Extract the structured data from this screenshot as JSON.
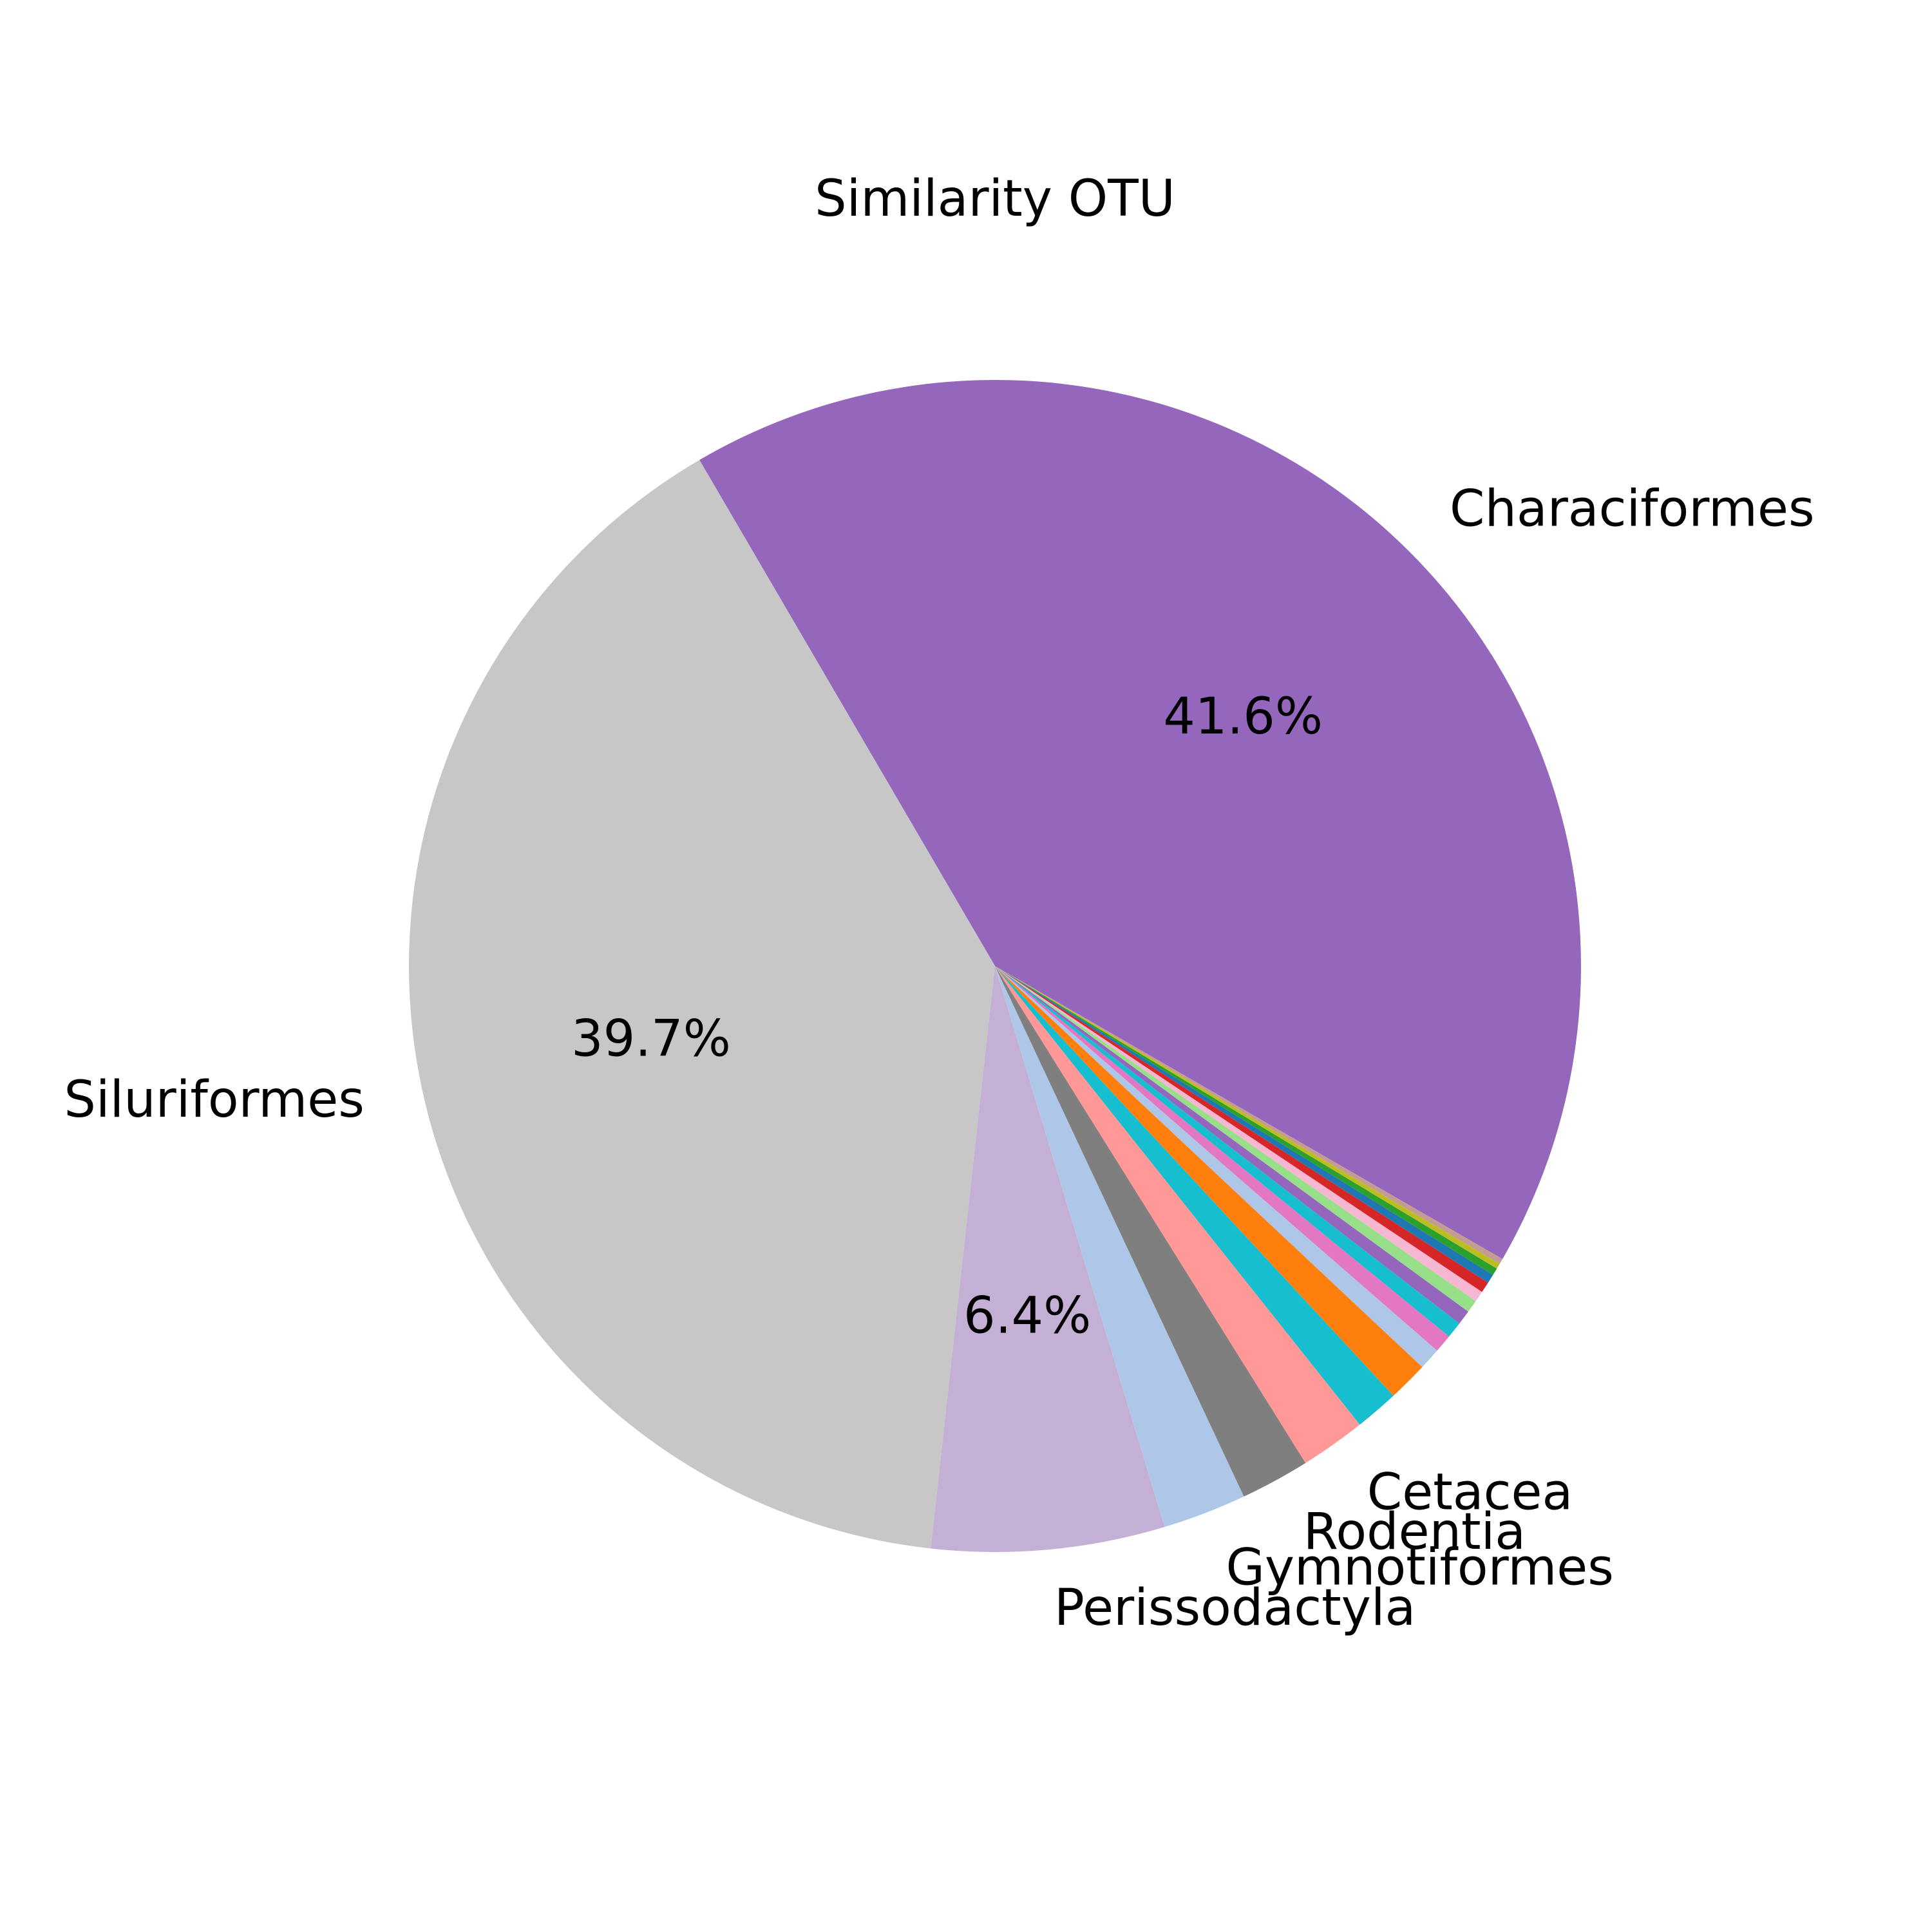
{
  "chart_data": {
    "type": "pie",
    "title": "Similarity OTU",
    "start_angle_deg": -30,
    "direction": "counterclockwise",
    "slices": [
      {
        "label": "Characiformes",
        "value": 41.6,
        "pct_label": "41.6%",
        "color": "#9467bd"
      },
      {
        "label": "Siluriformes",
        "value": 39.7,
        "pct_label": "39.7%",
        "color": "#c7c7c7"
      },
      {
        "label": "Perissodactyla",
        "value": 6.4,
        "pct_label": "6.4%",
        "color": "#c5b0d5"
      },
      {
        "label": "Gymnotiformes",
        "value": 2.3,
        "pct_label": "",
        "color": "#aec7e8"
      },
      {
        "label": "Rodentia",
        "value": 1.9,
        "pct_label": "",
        "color": "#7f7f7f"
      },
      {
        "label": "Cetacea",
        "value": 1.8,
        "pct_label": "",
        "color": "#ff9896"
      },
      {
        "label": "",
        "value": 1.2,
        "pct_label": "",
        "color": "#17becf"
      },
      {
        "label": "",
        "value": 1.1,
        "pct_label": "",
        "color": "#ff7f0e"
      },
      {
        "label": "",
        "value": 0.6,
        "pct_label": "",
        "color": "#aec7e8"
      },
      {
        "label": "",
        "value": 0.5,
        "pct_label": "",
        "color": "#e377c2"
      },
      {
        "label": "",
        "value": 0.45,
        "pct_label": "",
        "color": "#17becf"
      },
      {
        "label": "",
        "value": 0.4,
        "pct_label": "",
        "color": "#9467bd"
      },
      {
        "label": "",
        "value": 0.35,
        "pct_label": "",
        "color": "#98df8a"
      },
      {
        "label": "",
        "value": 0.3,
        "pct_label": "",
        "color": "#f7b6d2"
      },
      {
        "label": "",
        "value": 0.3,
        "pct_label": "",
        "color": "#d62728"
      },
      {
        "label": "",
        "value": 0.25,
        "pct_label": "",
        "color": "#1f77b4"
      },
      {
        "label": "",
        "value": 0.2,
        "pct_label": "",
        "color": "#2ca02c"
      },
      {
        "label": "",
        "value": 0.15,
        "pct_label": "",
        "color": "#bcbd22"
      },
      {
        "label": "",
        "value": 0.15,
        "pct_label": "",
        "color": "#c49c94"
      }
    ]
  }
}
